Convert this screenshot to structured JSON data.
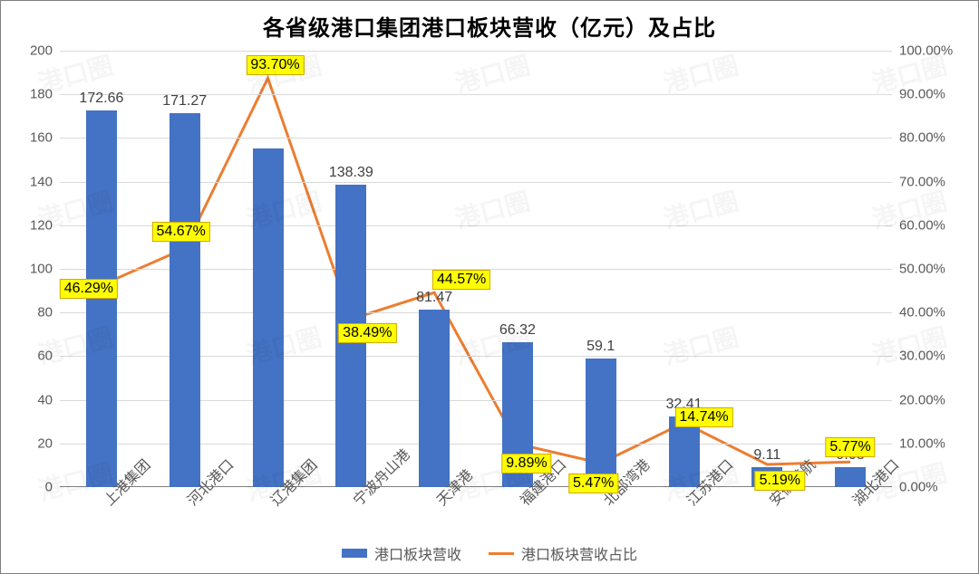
{
  "chart": {
    "type": "bar+line",
    "title": "各省级港口集团港口板块营收（亿元）及占比",
    "title_fontsize": 24,
    "background_color": "#ffffff",
    "border_color": "#7f7f7f",
    "grid_color": "#d9d9d9",
    "axis_label_color": "#595959",
    "bar_color": "#4472c4",
    "line_color": "#ed7d31",
    "line_width": 3,
    "categories": [
      "上港集团",
      "河北港口",
      "辽港集团",
      "宁波舟山港",
      "天津港",
      "福建港口",
      "北部湾港",
      "江苏港口",
      "安徽港航",
      "湖北港口"
    ],
    "bar_values": [
      172.66,
      171.27,
      155.0,
      138.39,
      81.47,
      66.32,
      59.1,
      32.41,
      9.11,
      9.03
    ],
    "bar_value_labels": [
      "172.66",
      "171.27",
      "",
      "138.39",
      "81.47",
      "66.32",
      "59.1",
      "32.41",
      "9.11",
      "9.03"
    ],
    "line_values_pct": [
      46.29,
      54.67,
      93.7,
      38.49,
      44.57,
      9.89,
      5.47,
      14.74,
      5.19,
      5.77
    ],
    "pct_labels": [
      "46.29%",
      "54.67%",
      "93.70%",
      "38.49%",
      "44.57%",
      "9.89%",
      "5.47%",
      "14.74%",
      "5.19%",
      "5.77%"
    ],
    "pct_label_bg": "#ffff00",
    "pct_label_border": "#cfa900",
    "y_left": {
      "min": 0,
      "max": 200,
      "step": 20
    },
    "y_right": {
      "min": 0,
      "max": 100,
      "step": 10,
      "format": "0.00%"
    },
    "legend": {
      "bar_label": "港口板块营收",
      "line_label": "港口板块营收占比"
    },
    "watermark_text": "港口圈"
  }
}
